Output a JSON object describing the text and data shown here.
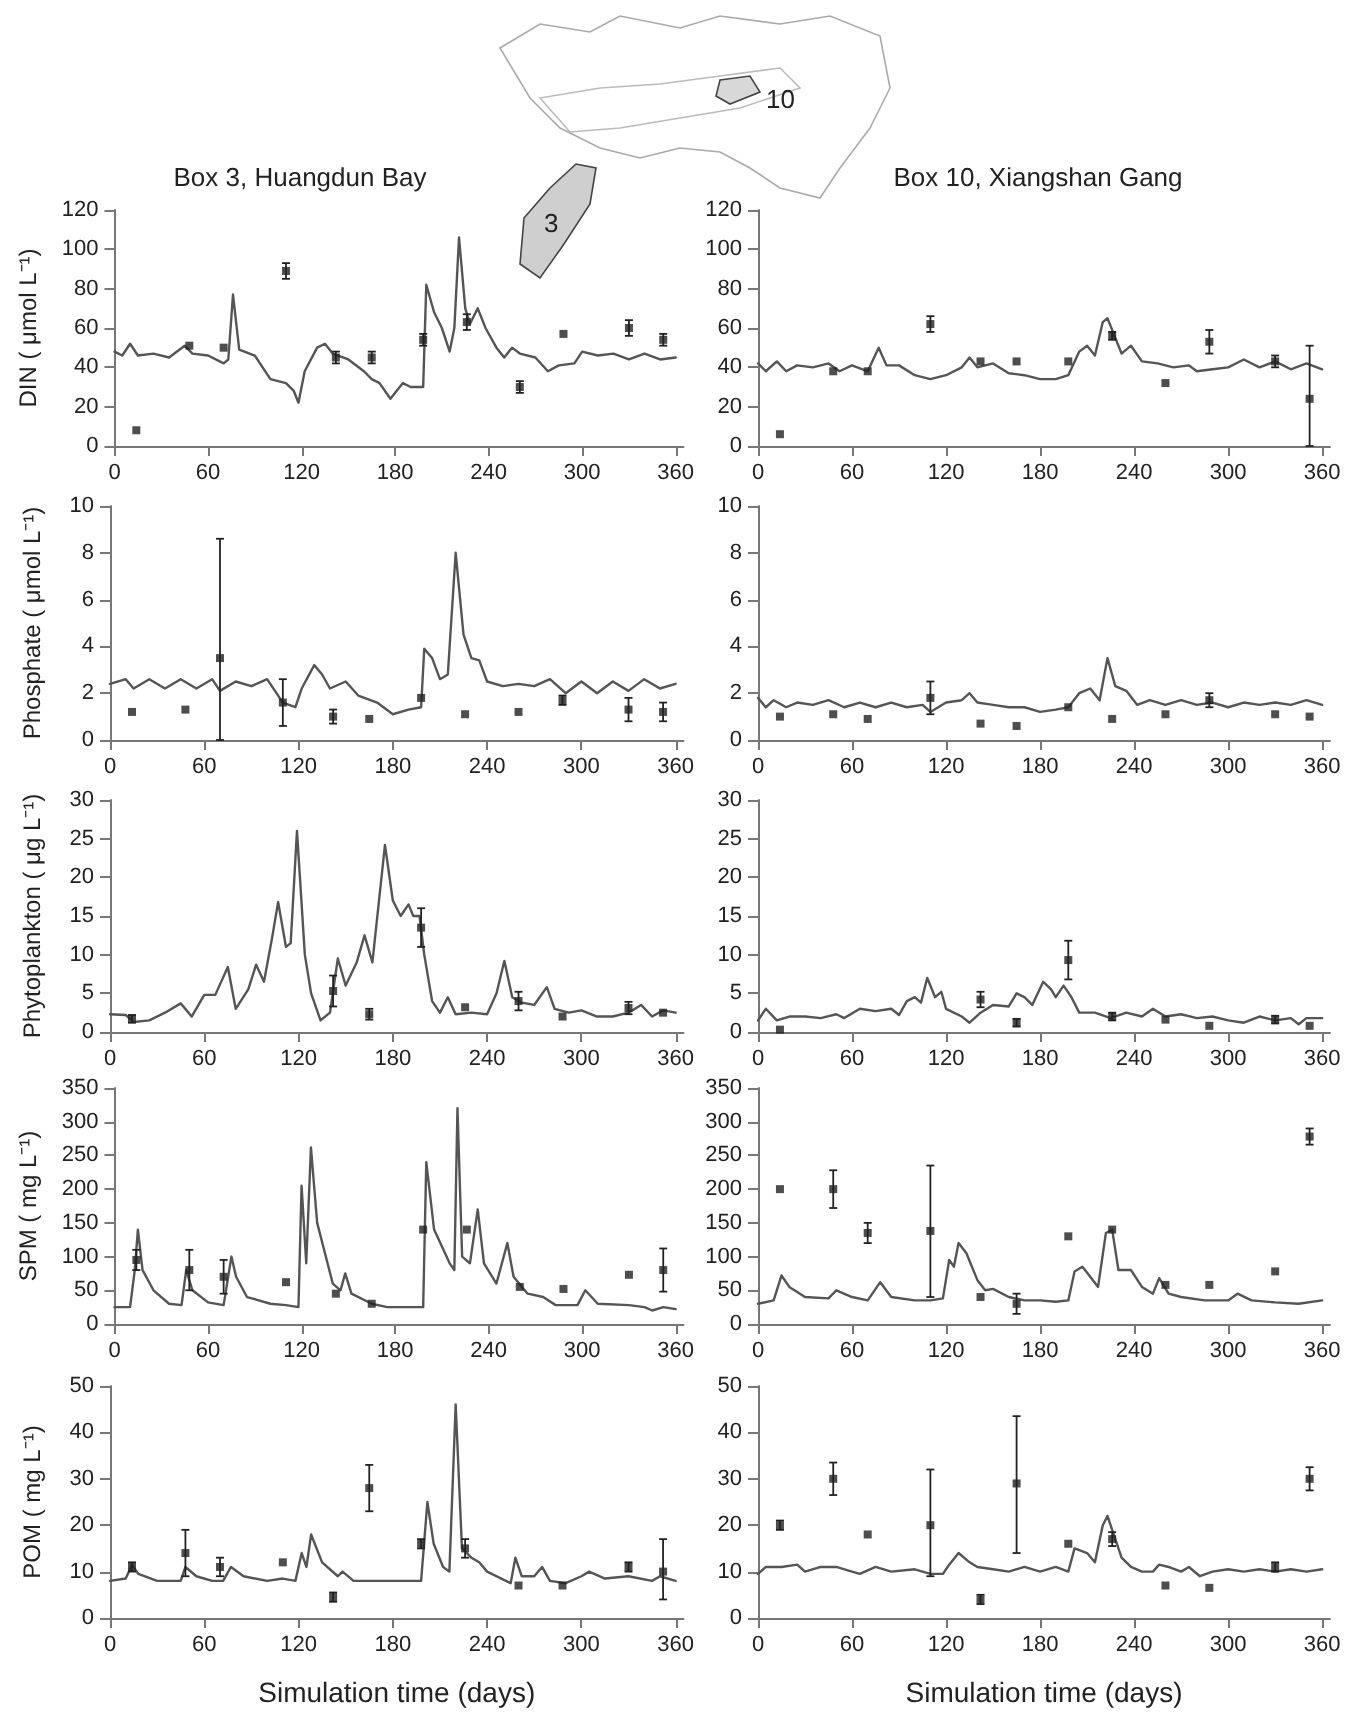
{
  "chart_data": [
    {
      "type": "line",
      "title": "Box 3, Huangdun Bay",
      "ylabel": "DIN ( μmol L⁻¹)",
      "xlim": [
        0,
        365
      ],
      "xticks": [
        0,
        60,
        120,
        180,
        240,
        300,
        360
      ],
      "ylim": [
        0,
        120
      ],
      "yticks": [
        0,
        20,
        40,
        60,
        80,
        100,
        120
      ],
      "grid": false,
      "annotations": [
        "3",
        "10"
      ],
      "series": [
        {
          "type": "line",
          "color": "#555555",
          "marker": "none",
          "x": [
            0,
            5,
            10,
            15,
            25,
            35,
            45,
            50,
            60,
            70,
            73,
            76,
            80,
            90,
            100,
            110,
            115,
            118,
            122,
            130,
            135,
            140,
            150,
            160,
            165,
            170,
            177,
            185,
            190,
            198,
            200,
            205,
            210,
            215,
            218,
            221,
            225,
            228,
            233,
            238,
            245,
            250,
            255,
            260,
            270,
            278,
            285,
            295,
            300,
            310,
            320,
            330,
            340,
            350,
            360
          ],
          "values": [
            48,
            46,
            52,
            46,
            47,
            45,
            51,
            47,
            46,
            42,
            44,
            77,
            49,
            46,
            34,
            32,
            28,
            22,
            38,
            50,
            52,
            47,
            44,
            38,
            34,
            32,
            24,
            32,
            30,
            30,
            82,
            68,
            60,
            48,
            60,
            106,
            70,
            62,
            70,
            60,
            50,
            45,
            50,
            47,
            45,
            38,
            41,
            42,
            48,
            46,
            47,
            44,
            47,
            44,
            45
          ]
        },
        {
          "type": "scatter",
          "color": "#222222",
          "marker": "square",
          "x": [
            14,
            48,
            70,
            110,
            142,
            165,
            198,
            226,
            260,
            288,
            330,
            352
          ],
          "values": [
            8,
            51,
            50,
            89,
            45,
            45,
            54,
            63,
            30,
            57,
            60,
            54
          ],
          "errors": [
            null,
            null,
            null,
            4,
            3,
            3,
            3,
            4,
            3,
            null,
            4,
            3
          ]
        }
      ]
    },
    {
      "type": "line",
      "title": "Box 10, Xiangshan Gang",
      "xlim": [
        0,
        365
      ],
      "xticks": [
        0,
        60,
        120,
        180,
        240,
        300,
        360
      ],
      "ylim": [
        0,
        120
      ],
      "yticks": [
        0,
        20,
        40,
        60,
        80,
        100,
        120
      ],
      "grid": false,
      "series": [
        {
          "type": "line",
          "color": "#555555",
          "marker": "none",
          "x": [
            0,
            5,
            12,
            18,
            25,
            35,
            45,
            52,
            60,
            70,
            77,
            82,
            90,
            100,
            110,
            120,
            130,
            135,
            140,
            150,
            160,
            170,
            180,
            190,
            198,
            205,
            210,
            215,
            220,
            223,
            228,
            232,
            238,
            245,
            255,
            265,
            275,
            280,
            290,
            300,
            310,
            320,
            330,
            340,
            350,
            360
          ],
          "values": [
            42,
            38,
            43,
            38,
            41,
            40,
            42,
            38,
            41,
            38,
            50,
            41,
            41,
            36,
            34,
            36,
            40,
            45,
            40,
            42,
            37,
            36,
            34,
            34,
            36,
            48,
            51,
            46,
            63,
            65,
            55,
            47,
            51,
            43,
            42,
            40,
            41,
            38,
            39,
            40,
            44,
            40,
            43,
            39,
            42,
            39
          ]
        },
        {
          "type": "scatter",
          "color": "#222222",
          "marker": "square",
          "x": [
            14,
            48,
            70,
            110,
            142,
            165,
            198,
            226,
            260,
            288,
            330,
            352
          ],
          "values": [
            6,
            38,
            38,
            62,
            43,
            43,
            43,
            56,
            32,
            53,
            43,
            24
          ],
          "errors": [
            null,
            null,
            null,
            4,
            null,
            null,
            null,
            2,
            null,
            6,
            3,
            [
              0,
              51
            ]
          ]
        }
      ]
    },
    {
      "type": "line",
      "ylabel": "Phosphate ( μmol L⁻¹)",
      "xlim": [
        0,
        365
      ],
      "xticks": [
        0,
        60,
        120,
        180,
        240,
        300,
        360
      ],
      "ylim": [
        0,
        10
      ],
      "yticks": [
        0,
        2,
        4,
        6,
        8,
        10
      ],
      "grid": false,
      "series": [
        {
          "type": "line",
          "color": "#555555",
          "marker": "none",
          "x": [
            0,
            10,
            15,
            25,
            35,
            45,
            55,
            65,
            70,
            80,
            90,
            100,
            110,
            118,
            122,
            130,
            135,
            140,
            150,
            158,
            170,
            180,
            190,
            198,
            200,
            205,
            210,
            215,
            220,
            225,
            230,
            235,
            240,
            250,
            260,
            270,
            280,
            290,
            300,
            310,
            320,
            330,
            340,
            350,
            360
          ],
          "values": [
            2.4,
            2.6,
            2.2,
            2.6,
            2.2,
            2.6,
            2.2,
            2.6,
            2.1,
            2.5,
            2.3,
            2.6,
            1.6,
            1.4,
            2.2,
            3.2,
            2.8,
            2.2,
            2.5,
            1.9,
            1.6,
            1.1,
            1.3,
            1.4,
            3.9,
            3.5,
            2.6,
            2.8,
            8.0,
            4.5,
            3.5,
            3.4,
            2.5,
            2.3,
            2.4,
            2.3,
            2.6,
            2.0,
            2.5,
            2.0,
            2.5,
            2.1,
            2.6,
            2.2,
            2.4
          ]
        },
        {
          "type": "scatter",
          "color": "#222222",
          "marker": "square",
          "x": [
            14,
            48,
            70,
            110,
            142,
            165,
            198,
            226,
            260,
            288,
            330,
            352
          ],
          "values": [
            1.2,
            1.3,
            3.5,
            1.6,
            1.0,
            0.9,
            1.8,
            1.1,
            1.2,
            1.7,
            1.3,
            1.2
          ],
          "errors": [
            null,
            null,
            [
              0,
              8.6
            ],
            1.0,
            0.3,
            null,
            null,
            null,
            null,
            0.2,
            0.5,
            0.4
          ]
        }
      ]
    },
    {
      "type": "line",
      "xlim": [
        0,
        365
      ],
      "xticks": [
        0,
        60,
        120,
        180,
        240,
        300,
        360
      ],
      "ylim": [
        0,
        10
      ],
      "yticks": [
        0,
        2,
        4,
        6,
        8,
        10
      ],
      "grid": false,
      "series": [
        {
          "type": "line",
          "color": "#555555",
          "marker": "none",
          "x": [
            0,
            5,
            10,
            18,
            25,
            35,
            45,
            55,
            65,
            75,
            85,
            95,
            105,
            110,
            120,
            130,
            135,
            140,
            150,
            160,
            170,
            180,
            190,
            198,
            205,
            212,
            218,
            223,
            228,
            235,
            242,
            250,
            260,
            270,
            280,
            290,
            300,
            310,
            320,
            330,
            340,
            350,
            360
          ],
          "values": [
            1.8,
            1.4,
            1.7,
            1.4,
            1.6,
            1.5,
            1.7,
            1.4,
            1.6,
            1.4,
            1.6,
            1.4,
            1.5,
            1.2,
            1.6,
            1.7,
            2.0,
            1.6,
            1.5,
            1.4,
            1.4,
            1.2,
            1.3,
            1.4,
            2.0,
            2.2,
            1.7,
            3.5,
            2.3,
            2.1,
            1.5,
            1.7,
            1.5,
            1.7,
            1.5,
            1.6,
            1.4,
            1.6,
            1.5,
            1.6,
            1.5,
            1.7,
            1.5
          ]
        },
        {
          "type": "scatter",
          "color": "#222222",
          "marker": "square",
          "x": [
            14,
            48,
            70,
            110,
            142,
            165,
            198,
            226,
            260,
            288,
            330,
            352
          ],
          "values": [
            1.0,
            1.1,
            0.9,
            1.8,
            0.7,
            0.6,
            1.4,
            0.9,
            1.1,
            1.7,
            1.1,
            1.0
          ],
          "errors": [
            null,
            null,
            null,
            0.7,
            null,
            null,
            null,
            null,
            null,
            0.3,
            null,
            null
          ]
        }
      ]
    },
    {
      "type": "line",
      "ylabel": "Phytoplankton ( μg L⁻¹)",
      "xlim": [
        0,
        365
      ],
      "xticks": [
        0,
        60,
        120,
        180,
        240,
        300,
        360
      ],
      "ylim": [
        0,
        30
      ],
      "yticks": [
        0,
        5,
        10,
        15,
        20,
        25,
        30
      ],
      "grid": false,
      "series": [
        {
          "type": "line",
          "color": "#555555",
          "marker": "none",
          "x": [
            0,
            10,
            15,
            25,
            35,
            45,
            52,
            60,
            67,
            75,
            80,
            88,
            93,
            98,
            103,
            107,
            112,
            115,
            119,
            124,
            128,
            134,
            140,
            145,
            150,
            157,
            162,
            167,
            175,
            180,
            185,
            190,
            193,
            197,
            200,
            205,
            210,
            215,
            220,
            230,
            240,
            246,
            251,
            256,
            262,
            270,
            278,
            283,
            292,
            300,
            310,
            320,
            330,
            338,
            345,
            352,
            360
          ],
          "values": [
            2.3,
            2.2,
            1.3,
            1.5,
            2.5,
            3.7,
            2.0,
            4.8,
            4.8,
            8.4,
            3.0,
            5.5,
            8.7,
            6.5,
            12,
            16.8,
            11,
            11.5,
            26,
            10,
            5,
            1.5,
            2.5,
            9.5,
            6,
            9,
            12.5,
            9,
            24.2,
            17,
            15,
            16.5,
            15,
            15,
            10,
            4,
            2.5,
            4.5,
            2.3,
            2.5,
            2.3,
            5,
            9.2,
            4.5,
            3.8,
            3.5,
            5.8,
            3,
            2.5,
            2.8,
            2,
            2,
            2.5,
            3.5,
            2,
            2.8,
            2.5
          ]
        },
        {
          "type": "scatter",
          "color": "#222222",
          "marker": "square",
          "x": [
            14,
            142,
            165,
            198,
            226,
            260,
            288,
            330,
            352
          ],
          "values": [
            1.7,
            5.3,
            2.3,
            13.5,
            3.2,
            4,
            2,
            3.1,
            2.5
          ],
          "errors": [
            0.5,
            2,
            0.7,
            2.5,
            null,
            1.2,
            null,
            0.8,
            null
          ]
        }
      ]
    },
    {
      "type": "line",
      "xlim": [
        0,
        365
      ],
      "xticks": [
        0,
        60,
        120,
        180,
        240,
        300,
        360
      ],
      "ylim": [
        0,
        30
      ],
      "yticks": [
        0,
        5,
        10,
        15,
        20,
        25,
        30
      ],
      "grid": false,
      "series": [
        {
          "type": "line",
          "color": "#555555",
          "marker": "none",
          "x": [
            0,
            5,
            12,
            20,
            30,
            40,
            50,
            55,
            65,
            75,
            85,
            90,
            95,
            100,
            104,
            108,
            113,
            117,
            120,
            130,
            135,
            142,
            150,
            160,
            165,
            170,
            175,
            182,
            187,
            190,
            195,
            200,
            205,
            215,
            225,
            235,
            245,
            252,
            260,
            270,
            280,
            290,
            300,
            310,
            320,
            330,
            340,
            345,
            350,
            360
          ],
          "values": [
            1.5,
            3,
            1.5,
            2,
            2,
            1.8,
            2.3,
            1.8,
            3,
            2.7,
            3,
            2.2,
            4,
            4.5,
            3.8,
            7,
            4.5,
            5.2,
            3,
            2,
            1.2,
            2.5,
            3.5,
            3.3,
            5,
            4.5,
            3.5,
            6.5,
            5.5,
            4.5,
            6,
            4.5,
            2.5,
            2.5,
            1.8,
            2.5,
            2,
            3,
            2,
            2.3,
            1.8,
            2,
            1.5,
            1.2,
            2,
            1.5,
            1.8,
            1,
            1.8,
            1.8
          ]
        },
        {
          "type": "scatter",
          "color": "#222222",
          "marker": "square",
          "x": [
            14,
            142,
            165,
            198,
            226,
            260,
            288,
            330,
            352
          ],
          "values": [
            0.3,
            4.2,
            1.2,
            9.3,
            2,
            1.6,
            0.8,
            1.6,
            0.8
          ],
          "errors": [
            null,
            1,
            0.5,
            2.5,
            0.5,
            null,
            null,
            0.5,
            null
          ]
        }
      ]
    },
    {
      "type": "line",
      "ylabel": "SPM ( mg L⁻¹)",
      "xlim": [
        0,
        365
      ],
      "xticks": [
        0,
        60,
        120,
        180,
        240,
        300,
        360
      ],
      "ylim": [
        0,
        350
      ],
      "yticks": [
        0,
        50,
        100,
        150,
        200,
        250,
        300,
        350
      ],
      "grid": false,
      "series": [
        {
          "type": "line",
          "color": "#555555",
          "marker": "none",
          "x": [
            0,
            10,
            13,
            15,
            18,
            25,
            35,
            43,
            46,
            50,
            60,
            70,
            75,
            78,
            85,
            100,
            110,
            118,
            120,
            123,
            126,
            130,
            140,
            145,
            148,
            152,
            165,
            175,
            198,
            200,
            205,
            215,
            218,
            220,
            223,
            228,
            233,
            237,
            245,
            252,
            256,
            265,
            275,
            283,
            297,
            302,
            310,
            330,
            340,
            345,
            352,
            360
          ],
          "values": [
            25,
            25,
            80,
            140,
            80,
            50,
            30,
            28,
            80,
            50,
            32,
            28,
            100,
            70,
            40,
            30,
            28,
            25,
            205,
            90,
            262,
            150,
            60,
            50,
            75,
            45,
            30,
            25,
            25,
            240,
            140,
            90,
            80,
            320,
            100,
            90,
            170,
            90,
            60,
            120,
            70,
            45,
            40,
            28,
            28,
            50,
            30,
            28,
            25,
            20,
            25,
            22
          ]
        },
        {
          "type": "scatter",
          "color": "#222222",
          "marker": "square",
          "x": [
            14,
            48,
            70,
            110,
            142,
            165,
            198,
            226,
            260,
            288,
            330,
            352
          ],
          "values": [
            95,
            80,
            70,
            62,
            45,
            30,
            140,
            140,
            55,
            52,
            73,
            80
          ],
          "errors": [
            15,
            30,
            25,
            null,
            null,
            null,
            null,
            null,
            null,
            null,
            null,
            32
          ]
        }
      ]
    },
    {
      "type": "line",
      "xlim": [
        0,
        365
      ],
      "xticks": [
        0,
        60,
        120,
        180,
        240,
        300,
        360
      ],
      "ylim": [
        0,
        350
      ],
      "yticks": [
        0,
        50,
        100,
        150,
        200,
        250,
        300,
        350
      ],
      "grid": false,
      "series": [
        {
          "type": "line",
          "color": "#555555",
          "marker": "none",
          "x": [
            0,
            10,
            15,
            20,
            30,
            45,
            50,
            60,
            70,
            78,
            85,
            100,
            110,
            118,
            122,
            125,
            128,
            133,
            140,
            145,
            150,
            160,
            170,
            180,
            190,
            198,
            202,
            207,
            212,
            217,
            222,
            226,
            230,
            238,
            245,
            252,
            256,
            262,
            270,
            285,
            300,
            306,
            315,
            330,
            345,
            360
          ],
          "values": [
            30,
            35,
            72,
            55,
            40,
            38,
            50,
            40,
            35,
            62,
            40,
            35,
            35,
            38,
            95,
            85,
            120,
            105,
            65,
            50,
            52,
            40,
            35,
            35,
            33,
            35,
            78,
            85,
            70,
            55,
            135,
            140,
            80,
            80,
            55,
            45,
            68,
            45,
            40,
            35,
            35,
            45,
            35,
            32,
            30,
            35
          ]
        },
        {
          "type": "scatter",
          "color": "#222222",
          "marker": "square",
          "x": [
            14,
            48,
            70,
            110,
            142,
            165,
            198,
            226,
            260,
            288,
            330,
            352
          ],
          "values": [
            200,
            200,
            135,
            138,
            40,
            30,
            130,
            140,
            58,
            58,
            78,
            278
          ],
          "errors": [
            null,
            28,
            15,
            [
              40,
              235
            ],
            null,
            15,
            null,
            null,
            null,
            null,
            null,
            12
          ]
        }
      ]
    },
    {
      "type": "line",
      "ylabel": "POM ( mg L⁻¹)",
      "xlabel": "Simulation time (days)",
      "xlim": [
        0,
        365
      ],
      "xticks": [
        0,
        60,
        120,
        180,
        240,
        300,
        360
      ],
      "ylim": [
        0,
        50
      ],
      "yticks": [
        0,
        10,
        20,
        30,
        40,
        50
      ],
      "grid": false,
      "series": [
        {
          "type": "line",
          "color": "#555555",
          "marker": "none",
          "x": [
            0,
            10,
            14,
            18,
            30,
            45,
            48,
            55,
            65,
            72,
            77,
            85,
            100,
            110,
            118,
            122,
            125,
            128,
            135,
            145,
            148,
            155,
            165,
            175,
            190,
            198,
            202,
            206,
            212,
            216,
            220,
            224,
            230,
            235,
            240,
            255,
            258,
            262,
            270,
            275,
            280,
            290,
            300,
            305,
            315,
            330,
            345,
            350,
            360
          ],
          "values": [
            8,
            8.5,
            11.5,
            9.5,
            8,
            8,
            11,
            9,
            8,
            8,
            11,
            9,
            8,
            8.5,
            8,
            14,
            11,
            18,
            12,
            9,
            10,
            8,
            8,
            8,
            8,
            8,
            25,
            16,
            11,
            10,
            46,
            15,
            13,
            12,
            10,
            7.5,
            13,
            9,
            9,
            11,
            8,
            7.5,
            9,
            10,
            8.5,
            9,
            8,
            9,
            8
          ]
        },
        {
          "type": "scatter",
          "color": "#222222",
          "marker": "square",
          "x": [
            14,
            48,
            70,
            110,
            142,
            165,
            198,
            226,
            260,
            288,
            330,
            352
          ],
          "values": [
            11,
            14,
            11,
            12,
            4.5,
            28,
            16,
            15,
            7,
            7,
            11,
            10
          ],
          "errors": [
            1,
            5,
            2,
            null,
            1,
            5,
            1,
            2,
            null,
            null,
            1,
            [
              4,
              17
            ]
          ]
        }
      ]
    },
    {
      "type": "line",
      "xlabel": "Simulation time (days)",
      "xlim": [
        0,
        365
      ],
      "xticks": [
        0,
        60,
        120,
        180,
        240,
        300,
        360
      ],
      "ylim": [
        0,
        50
      ],
      "yticks": [
        0,
        10,
        20,
        30,
        40,
        50
      ],
      "grid": false,
      "series": [
        {
          "type": "line",
          "color": "#555555",
          "marker": "none",
          "x": [
            0,
            5,
            15,
            25,
            30,
            40,
            50,
            60,
            65,
            75,
            85,
            100,
            110,
            118,
            122,
            128,
            135,
            140,
            150,
            160,
            170,
            180,
            190,
            198,
            202,
            210,
            215,
            220,
            223,
            228,
            232,
            238,
            245,
            252,
            256,
            262,
            270,
            275,
            282,
            290,
            300,
            310,
            320,
            330,
            340,
            350,
            360
          ],
          "values": [
            9.5,
            11,
            11,
            11.5,
            10,
            11,
            11,
            10,
            9.5,
            11,
            10,
            10.5,
            9.5,
            9.5,
            11.5,
            14,
            12,
            11,
            10.5,
            10,
            11,
            10,
            11,
            10,
            15,
            14,
            12,
            20,
            22,
            17,
            13,
            11,
            10,
            10,
            11.5,
            11,
            10,
            11,
            9,
            10,
            10.5,
            10,
            10.5,
            10,
            10.5,
            10,
            10.5
          ]
        },
        {
          "type": "scatter",
          "color": "#222222",
          "marker": "square",
          "x": [
            14,
            48,
            70,
            110,
            142,
            165,
            198,
            226,
            260,
            288,
            330,
            352
          ],
          "values": [
            20,
            30,
            18,
            20,
            4,
            29,
            16,
            17,
            7,
            6.5,
            11,
            30
          ],
          "errors": [
            1,
            3.5,
            null,
            [
              9,
              32
            ],
            1,
            [
              14,
              43.5
            ],
            null,
            1.5,
            null,
            null,
            1,
            2.5
          ]
        }
      ]
    }
  ]
}
